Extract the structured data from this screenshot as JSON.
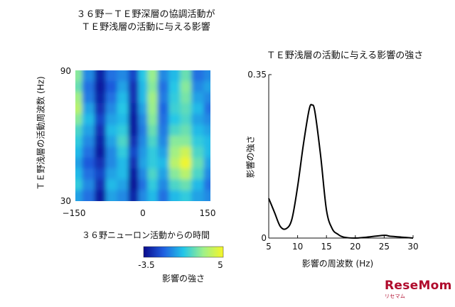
{
  "chart_data": [
    {
      "type": "heatmap",
      "title_line1": "３６野－ＴＥ野深層の協調活動が",
      "title_line2": "ＴＥ野浅層の活動に与える影響",
      "xlabel": "３６野ニューロン活動からの時間",
      "ylabel": "ＴＥ野浅層の活動周波数 (Hz)",
      "x_ticks": [
        "−150",
        "0",
        "150"
      ],
      "y_ticks": [
        "90",
        "30"
      ],
      "xlim": [
        -150,
        150
      ],
      "ylim": [
        30,
        90
      ],
      "colorbar": {
        "min": -3.5,
        "max": 5,
        "min_label": "-3.5",
        "max_label": "5",
        "label": "影響の強さ",
        "colors": [
          "#0a0a8c",
          "#1f5fe0",
          "#22c6e8",
          "#9ef08a",
          "#f6f628"
        ]
      },
      "rows": 12,
      "col_centers": [
        -150,
        -120,
        -95,
        -70,
        -45,
        -20,
        0,
        20,
        45,
        70,
        95,
        120,
        150
      ],
      "values": [
        [
          2.5,
          -0.5,
          -2.8,
          -1.0,
          -0.5,
          -2.0,
          0.8,
          2.8,
          -0.5,
          0.5,
          2.0,
          -1.0,
          -0.5
        ],
        [
          2.0,
          -1.0,
          -3.0,
          -1.5,
          0.0,
          -2.5,
          0.5,
          2.5,
          -1.0,
          0.8,
          2.5,
          -0.5,
          0.0
        ],
        [
          3.0,
          -0.8,
          -2.8,
          -1.0,
          0.5,
          -2.5,
          0.5,
          3.0,
          -0.8,
          1.0,
          2.2,
          0.0,
          -0.5
        ],
        [
          3.5,
          0.0,
          -2.5,
          -0.5,
          0.8,
          -2.8,
          0.0,
          2.8,
          -1.2,
          1.2,
          1.8,
          0.5,
          -1.0
        ],
        [
          2.5,
          0.5,
          -2.0,
          0.0,
          0.5,
          -3.0,
          -0.5,
          2.5,
          -1.0,
          0.8,
          1.5,
          0.0,
          -0.5
        ],
        [
          1.5,
          0.0,
          -2.5,
          0.5,
          1.0,
          -3.0,
          -0.8,
          2.0,
          -0.8,
          1.5,
          2.0,
          0.5,
          0.0
        ],
        [
          1.0,
          -0.5,
          -2.8,
          0.0,
          1.5,
          -2.5,
          -0.5,
          1.5,
          -0.5,
          2.5,
          2.5,
          1.0,
          0.5
        ],
        [
          0.5,
          -1.0,
          -3.0,
          -0.5,
          1.0,
          -2.0,
          -0.2,
          1.0,
          0.0,
          3.0,
          4.0,
          1.5,
          0.5
        ],
        [
          0.0,
          -1.5,
          -2.5,
          -0.5,
          0.5,
          -2.5,
          0.0,
          1.0,
          0.5,
          3.5,
          4.8,
          2.0,
          0.0
        ],
        [
          0.5,
          -1.0,
          -2.0,
          0.0,
          0.5,
          -3.0,
          -0.5,
          1.5,
          0.0,
          2.5,
          3.5,
          1.5,
          -0.5
        ],
        [
          1.0,
          -0.5,
          -2.5,
          0.5,
          0.0,
          -3.2,
          -1.0,
          1.0,
          -0.5,
          1.5,
          2.0,
          0.5,
          -1.0
        ],
        [
          0.0,
          -1.0,
          -3.0,
          0.0,
          -0.5,
          -2.8,
          -0.5,
          0.5,
          -1.0,
          0.5,
          1.0,
          0.0,
          -0.5
        ]
      ]
    },
    {
      "type": "line",
      "title": "ＴＥ野浅層の活動に与える影響の強さ",
      "xlabel": "影響の周波数 (Hz)",
      "ylabel": "影響の強さ",
      "x_ticks": [
        "5",
        "10",
        "15",
        "20",
        "25",
        "30"
      ],
      "y_ticks": [
        "0.35",
        "0"
      ],
      "xlim": [
        5,
        30
      ],
      "ylim": [
        0,
        0.35
      ],
      "x": [
        5,
        6,
        7,
        8,
        9,
        10,
        11,
        12,
        12.5,
        13,
        14,
        15,
        16,
        17,
        18,
        20,
        22,
        25,
        26,
        28,
        30
      ],
      "y": [
        0.085,
        0.055,
        0.025,
        0.02,
        0.04,
        0.11,
        0.2,
        0.275,
        0.285,
        0.27,
        0.175,
        0.06,
        0.02,
        0.008,
        0.002,
        0.0,
        0.002,
        0.006,
        0.004,
        0.002,
        0.0
      ]
    }
  ],
  "watermark": {
    "text": "ReseMom",
    "small": "リセマム"
  }
}
